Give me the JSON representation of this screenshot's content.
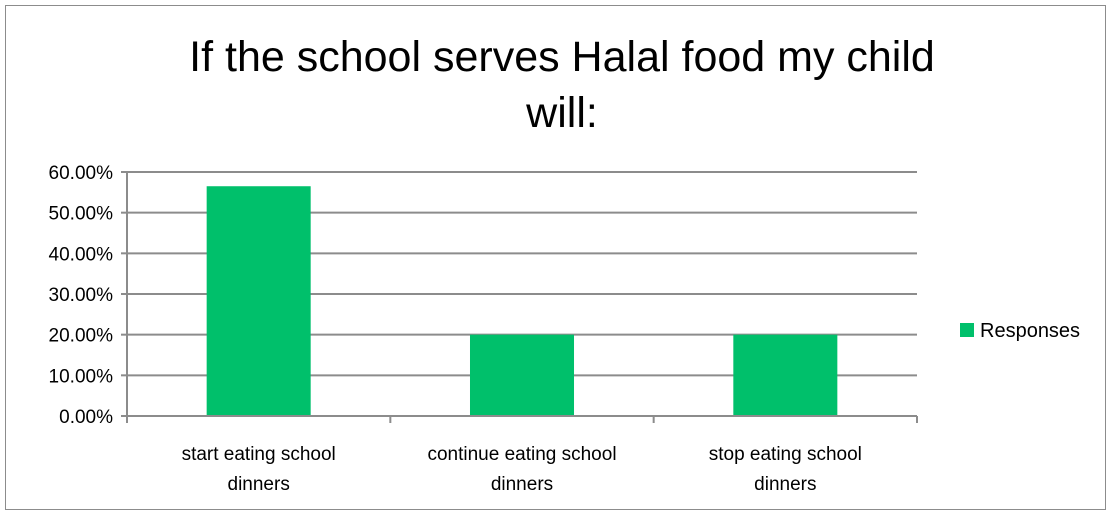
{
  "chart_data": {
    "type": "bar",
    "title_lines": [
      "If the school serves Halal food my child",
      "will:"
    ],
    "categories": [
      [
        "start eating school",
        "dinners"
      ],
      [
        "continue eating school",
        "dinners"
      ],
      [
        "stop eating school",
        "dinners"
      ]
    ],
    "series": [
      {
        "name": "Responses",
        "values": [
          0.565,
          0.2,
          0.2
        ],
        "color": "#00c06b"
      }
    ],
    "y_ticks": [
      "0.00%",
      "10.00%",
      "20.00%",
      "30.00%",
      "40.00%",
      "50.00%",
      "60.00%"
    ],
    "ylim": [
      0,
      0.6
    ],
    "xlabel": "",
    "ylabel": "",
    "grid": true,
    "legend_position": "right",
    "gridline_color": "#8c8c8c",
    "axis_color": "#8c8c8c"
  }
}
